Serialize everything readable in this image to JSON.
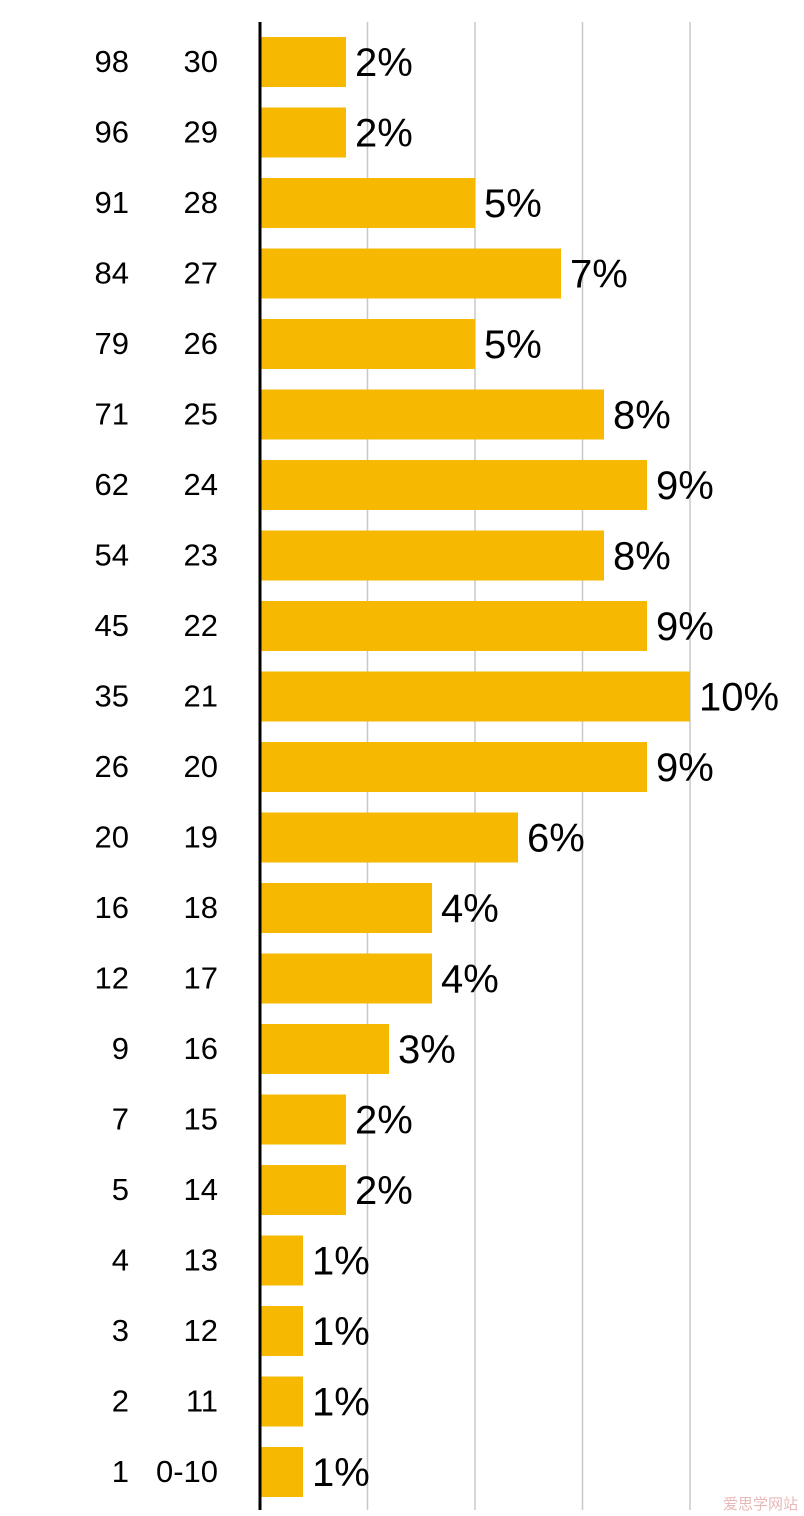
{
  "colors": {
    "bar": "#F6B800",
    "grid": "#c8c8c8",
    "axis": "#000000",
    "text": "#000000"
  },
  "watermark": "爱思学网站",
  "chart_data": {
    "type": "bar",
    "orientation": "horizontal",
    "title": "",
    "xlabel": "",
    "ylabel": "",
    "xlim": [
      0,
      10
    ],
    "grid": true,
    "legend": "none",
    "categories": [
      "30",
      "29",
      "28",
      "27",
      "26",
      "25",
      "24",
      "23",
      "22",
      "21",
      "20",
      "19",
      "18",
      "17",
      "16",
      "15",
      "14",
      "13",
      "12",
      "11",
      "0-10"
    ],
    "percentiles": [
      "98",
      "96",
      "91",
      "84",
      "79",
      "71",
      "62",
      "54",
      "45",
      "35",
      "26",
      "20",
      "16",
      "12",
      "9",
      "7",
      "5",
      "4",
      "3",
      "2",
      "1"
    ],
    "values": [
      2,
      2,
      5,
      7,
      5,
      8,
      9,
      8,
      9,
      10,
      9,
      6,
      4,
      4,
      3,
      2,
      2,
      1,
      1,
      1,
      1
    ],
    "value_labels": [
      "2%",
      "2%",
      "5%",
      "7%",
      "5%",
      "8%",
      "9%",
      "8%",
      "9%",
      "10%",
      "9%",
      "6%",
      "4%",
      "4%",
      "3%",
      "2%",
      "2%",
      "1%",
      "1%",
      "1%",
      "1%"
    ]
  }
}
